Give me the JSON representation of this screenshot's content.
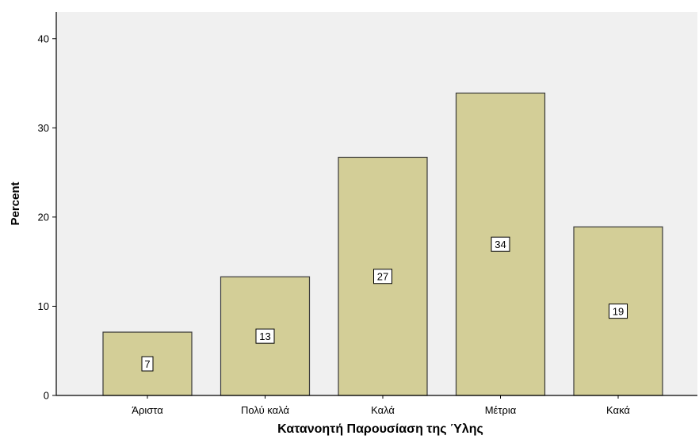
{
  "chart_data": {
    "type": "bar",
    "categories": [
      "Άριστα",
      "Πολύ καλά",
      "Καλά",
      "Μέτρια",
      "Κακά"
    ],
    "values": [
      7.1,
      13.3,
      26.7,
      33.9,
      18.9
    ],
    "data_labels": [
      "7",
      "13",
      "27",
      "34",
      "19"
    ],
    "xlabel": "Κατανοητή Παρουσίαση της Ύλης",
    "ylabel": "Percent",
    "ylim": [
      0,
      43
    ],
    "yticks": [
      0,
      10,
      20,
      30,
      40
    ],
    "grid": false,
    "colors": {
      "plot_background": "#f0f0f0",
      "bar_fill": "#d3ce97",
      "bar_stroke": "#3a3a3a",
      "label_box_fill": "#ffffff",
      "label_box_stroke": "#000000"
    }
  }
}
